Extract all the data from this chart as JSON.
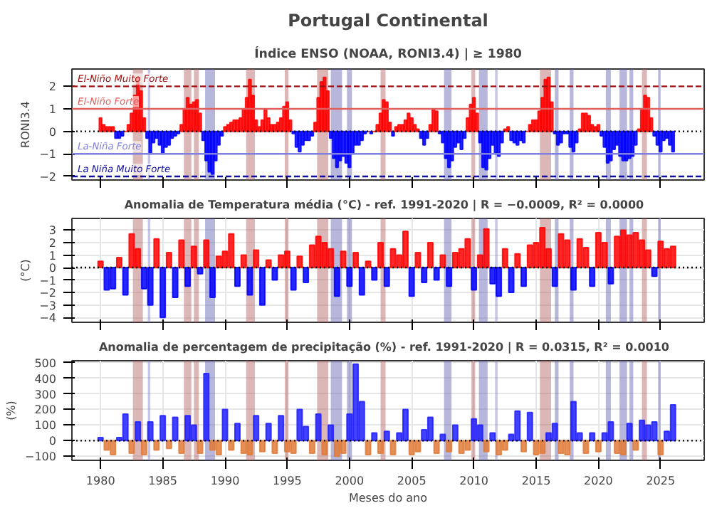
{
  "chart_data": [
    {
      "type": "bar",
      "title": "Portugal Continental",
      "subtitle": "Índice ENSO (NOAA, RONI3.4) | ≥ 1980",
      "ylabel": "RONI3.4",
      "tick_labels": "y",
      "grid": false,
      "xlim": [
        1977.7,
        2028.5
      ],
      "xticks": [
        1980,
        1985,
        1990,
        1995,
        2000,
        2005,
        2010,
        2015,
        2020,
        2025
      ],
      "ylim": [
        -2.16,
        2.77
      ],
      "yticks": [
        -2,
        -1,
        0,
        1,
        2
      ],
      "x": [
        1980,
        1980.25,
        1980.5,
        1980.75,
        1981,
        1981.25,
        1981.5,
        1981.75,
        1982,
        1982.25,
        1982.5,
        1982.75,
        1983,
        1983.25,
        1983.5,
        1983.75,
        1984,
        1984.25,
        1984.5,
        1984.75,
        1985,
        1985.25,
        1985.5,
        1985.75,
        1986,
        1986.25,
        1986.5,
        1986.75,
        1987,
        1987.25,
        1987.5,
        1987.75,
        1988,
        1988.25,
        1988.5,
        1988.75,
        1989,
        1989.25,
        1989.5,
        1989.75,
        1990,
        1990.25,
        1990.5,
        1990.75,
        1991,
        1991.25,
        1991.5,
        1991.75,
        1992,
        1992.25,
        1992.5,
        1992.75,
        1993,
        1993.25,
        1993.5,
        1993.75,
        1994,
        1994.25,
        1994.5,
        1994.75,
        1995,
        1995.25,
        1995.5,
        1995.75,
        1996,
        1996.25,
        1996.5,
        1996.75,
        1997,
        1997.25,
        1997.5,
        1997.75,
        1998,
        1998.25,
        1998.5,
        1998.75,
        1999,
        1999.25,
        1999.5,
        1999.75,
        2000,
        2000.25,
        2000.5,
        2000.75,
        2001,
        2001.25,
        2001.5,
        2001.75,
        2002,
        2002.25,
        2002.5,
        2002.75,
        2003,
        2003.25,
        2003.5,
        2003.75,
        2004,
        2004.25,
        2004.5,
        2004.75,
        2005,
        2005.25,
        2005.5,
        2005.75,
        2006,
        2006.25,
        2006.5,
        2006.75,
        2007,
        2007.25,
        2007.5,
        2007.75,
        2008,
        2008.25,
        2008.5,
        2008.75,
        2009,
        2009.25,
        2009.5,
        2009.75,
        2010,
        2010.25,
        2010.5,
        2010.75,
        2011,
        2011.25,
        2011.5,
        2011.75,
        2012,
        2012.25,
        2012.5,
        2012.75,
        2013,
        2013.25,
        2013.5,
        2013.75,
        2014,
        2014.25,
        2014.5,
        2014.75,
        2015,
        2015.25,
        2015.5,
        2015.75,
        2016,
        2016.25,
        2016.5,
        2016.75,
        2017,
        2017.25,
        2017.5,
        2017.75,
        2018,
        2018.25,
        2018.5,
        2018.75,
        2019,
        2019.25,
        2019.5,
        2019.75,
        2020,
        2020.25,
        2020.5,
        2020.75,
        2021,
        2021.25,
        2021.5,
        2021.75,
        2022,
        2022.25,
        2022.5,
        2022.75,
        2023,
        2023.25,
        2023.5,
        2023.75,
        2024,
        2024.25,
        2024.5,
        2024.75,
        2025,
        2025.25,
        2025.5,
        2025.75,
        2026
      ],
      "values": [
        0.6,
        0.3,
        0.2,
        0.2,
        0.2,
        -0.3,
        -0.3,
        -0.2,
        0.0,
        0.3,
        0.8,
        1.6,
        2.4,
        1.8,
        0.6,
        -0.3,
        -1.0,
        -0.5,
        -0.3,
        -0.6,
        -1.0,
        -0.7,
        -0.6,
        -0.3,
        -0.2,
        -0.1,
        0.3,
        1.0,
        1.5,
        1.2,
        1.3,
        1.4,
        0.8,
        -0.4,
        -1.3,
        -1.8,
        -1.9,
        -1.3,
        -0.6,
        -0.2,
        0.2,
        0.3,
        0.4,
        0.5,
        0.5,
        0.6,
        1.0,
        1.5,
        2.3,
        1.6,
        0.5,
        0.2,
        0.5,
        1.0,
        0.6,
        0.3,
        0.3,
        0.4,
        0.6,
        1.1,
        1.3,
        0.5,
        -0.1,
        -0.7,
        -0.9,
        -0.6,
        -0.4,
        -0.4,
        -0.2,
        0.4,
        1.5,
        2.2,
        2.4,
        1.8,
        -0.3,
        -1.2,
        -1.6,
        -1.3,
        -1.1,
        -1.4,
        -1.6,
        -1.0,
        -0.6,
        -0.6,
        -0.4,
        -0.1,
        0.0,
        -0.1,
        0.0,
        0.3,
        0.8,
        1.4,
        1.3,
        0.4,
        -0.2,
        0.2,
        0.3,
        0.3,
        0.5,
        0.8,
        0.6,
        0.3,
        0.1,
        -0.3,
        -0.6,
        -0.3,
        0.3,
        1.0,
        0.9,
        -0.1,
        -0.5,
        -1.2,
        -1.6,
        -1.3,
        -0.7,
        -0.5,
        -0.8,
        -0.3,
        0.6,
        1.2,
        1.5,
        0.8,
        -0.5,
        -1.6,
        -1.7,
        -1.2,
        -0.6,
        -1.0,
        -1.1,
        -0.5,
        0.1,
        0.2,
        -0.4,
        -0.5,
        -0.6,
        -0.4,
        -0.5,
        0.0,
        0.3,
        0.5,
        0.5,
        0.9,
        1.5,
        2.3,
        2.4,
        1.3,
        -0.1,
        -0.6,
        -0.5,
        -0.1,
        -0.1,
        -0.7,
        -0.9,
        -0.5,
        0.1,
        0.8,
        0.8,
        0.7,
        0.3,
        0.2,
        0.3,
        -0.2,
        -0.7,
        -1.4,
        -1.3,
        -0.8,
        -0.6,
        -1.1,
        -1.3,
        -1.3,
        -1.2,
        -1.1,
        -0.6,
        0.1,
        1.0,
        1.6,
        1.5,
        0.6,
        -0.2,
        -0.6,
        -0.9,
        -0.4,
        -0.3,
        -0.6,
        -0.9
      ],
      "colors": [
        "#ff0000",
        "#ff0000",
        "#ff0000",
        "#ff0000",
        "#ff0000",
        "#0000ff",
        "#0000ff",
        "#0000ff",
        "#ff0000",
        "#ff0000",
        "#ff0000",
        "#ff0000",
        "#ff0000",
        "#ff0000",
        "#ff0000",
        "#0000ff",
        "#0000ff",
        "#0000ff",
        "#0000ff",
        "#0000ff",
        "#0000ff",
        "#0000ff",
        "#0000ff",
        "#0000ff",
        "#0000ff",
        "#0000ff",
        "#ff0000",
        "#ff0000",
        "#ff0000",
        "#ff0000",
        "#ff0000",
        "#ff0000",
        "#ff0000",
        "#0000ff",
        "#0000ff",
        "#0000ff",
        "#0000ff",
        "#0000ff",
        "#0000ff",
        "#0000ff",
        "#ff0000",
        "#ff0000",
        "#ff0000",
        "#ff0000",
        "#ff0000",
        "#ff0000",
        "#ff0000",
        "#ff0000",
        "#ff0000",
        "#ff0000",
        "#ff0000",
        "#ff0000",
        "#ff0000",
        "#ff0000",
        "#ff0000",
        "#ff0000",
        "#ff0000",
        "#ff0000",
        "#ff0000",
        "#ff0000",
        "#ff0000",
        "#ff0000",
        "#0000ff",
        "#0000ff",
        "#0000ff",
        "#0000ff",
        "#0000ff",
        "#0000ff",
        "#0000ff",
        "#ff0000",
        "#ff0000",
        "#ff0000",
        "#ff0000",
        "#ff0000",
        "#0000ff",
        "#0000ff",
        "#0000ff",
        "#0000ff",
        "#0000ff",
        "#0000ff",
        "#0000ff",
        "#0000ff",
        "#0000ff",
        "#0000ff",
        "#0000ff",
        "#0000ff",
        "#ff0000",
        "#0000ff",
        "#ff0000",
        "#ff0000",
        "#ff0000",
        "#ff0000",
        "#ff0000",
        "#ff0000",
        "#0000ff",
        "#ff0000",
        "#ff0000",
        "#ff0000",
        "#ff0000",
        "#ff0000",
        "#ff0000",
        "#ff0000",
        "#ff0000",
        "#0000ff",
        "#0000ff",
        "#0000ff",
        "#ff0000",
        "#ff0000",
        "#ff0000",
        "#0000ff",
        "#0000ff",
        "#0000ff",
        "#0000ff",
        "#0000ff",
        "#0000ff",
        "#0000ff",
        "#0000ff",
        "#0000ff",
        "#ff0000",
        "#ff0000",
        "#ff0000",
        "#ff0000",
        "#0000ff",
        "#0000ff",
        "#0000ff",
        "#0000ff",
        "#0000ff",
        "#0000ff",
        "#0000ff",
        "#0000ff",
        "#ff0000",
        "#ff0000",
        "#0000ff",
        "#0000ff",
        "#0000ff",
        "#0000ff",
        "#0000ff",
        "#ff0000",
        "#ff0000",
        "#ff0000",
        "#ff0000",
        "#ff0000",
        "#ff0000",
        "#ff0000",
        "#ff0000",
        "#ff0000",
        "#0000ff",
        "#0000ff",
        "#0000ff",
        "#0000ff",
        "#0000ff",
        "#0000ff",
        "#0000ff",
        "#0000ff",
        "#ff0000",
        "#ff0000",
        "#ff0000",
        "#ff0000",
        "#ff0000",
        "#ff0000",
        "#ff0000",
        "#0000ff",
        "#0000ff",
        "#0000ff",
        "#0000ff",
        "#0000ff",
        "#0000ff",
        "#0000ff",
        "#0000ff",
        "#0000ff",
        "#0000ff",
        "#0000ff",
        "#0000ff",
        "#ff0000",
        "#ff0000",
        "#ff0000",
        "#ff0000",
        "#ff0000",
        "#0000ff",
        "#0000ff",
        "#0000ff",
        "#0000ff",
        "#0000ff",
        "#0000ff",
        "#0000ff"
      ],
      "ref_lines": [
        {
          "axis": "y",
          "value": 0,
          "color": "#000000",
          "line_style": "dotted"
        },
        {
          "axis": "y",
          "value": 2,
          "label": "El-Niño Muito Forte",
          "color": "#a01010",
          "line_style": "dashed"
        },
        {
          "axis": "y",
          "value": 1,
          "label": "El-Niño Forte",
          "color": "#e06060",
          "line_style": "solid"
        },
        {
          "axis": "y",
          "value": -1,
          "label": "La-Niña Forte",
          "color": "#8080e0",
          "line_style": "solid"
        },
        {
          "axis": "y",
          "value": -2,
          "label": "La Niña Muito Forte",
          "color": "#1010a0",
          "line_style": "dashed"
        }
      ],
      "bands": [
        {
          "axis": "x",
          "from": 1982.6,
          "to": 1983.4,
          "color": "#b06060"
        },
        {
          "axis": "x",
          "from": 1983.8,
          "to": 1984.0,
          "color": "#8080c8"
        },
        {
          "axis": "x",
          "from": 1986.7,
          "to": 1987.3,
          "color": "#b06060"
        },
        {
          "axis": "x",
          "from": 1987.5,
          "to": 1987.9,
          "color": "#b06060"
        },
        {
          "axis": "x",
          "from": 1988.4,
          "to": 1989.2,
          "color": "#6060b0"
        },
        {
          "axis": "x",
          "from": 1991.7,
          "to": 1992.4,
          "color": "#b06060"
        },
        {
          "axis": "x",
          "from": 1994.8,
          "to": 1995.1,
          "color": "#b06060"
        },
        {
          "axis": "x",
          "from": 1997.4,
          "to": 1998.3,
          "color": "#b06060"
        },
        {
          "axis": "x",
          "from": 1998.5,
          "to": 1999.4,
          "color": "#6060b0"
        },
        {
          "axis": "x",
          "from": 1999.8,
          "to": 2000.2,
          "color": "#6060b0"
        },
        {
          "axis": "x",
          "from": 2002.5,
          "to": 2002.9,
          "color": "#b06060"
        },
        {
          "axis": "x",
          "from": 2007.6,
          "to": 2008.2,
          "color": "#6060b0"
        },
        {
          "axis": "x",
          "from": 2009.8,
          "to": 2010.1,
          "color": "#b06060"
        },
        {
          "axis": "x",
          "from": 2010.4,
          "to": 2011.1,
          "color": "#6060b0"
        },
        {
          "axis": "x",
          "from": 2011.7,
          "to": 2011.9,
          "color": "#8080c8"
        },
        {
          "axis": "x",
          "from": 2015.3,
          "to": 2016.2,
          "color": "#b06060"
        },
        {
          "axis": "x",
          "from": 2016.5,
          "to": 2016.8,
          "color": "#6060b0"
        },
        {
          "axis": "x",
          "from": 2017.7,
          "to": 2018.0,
          "color": "#6060b0"
        },
        {
          "axis": "x",
          "from": 2020.6,
          "to": 2021.0,
          "color": "#6060b0"
        },
        {
          "axis": "x",
          "from": 2021.7,
          "to": 2022.3,
          "color": "#6060b0"
        },
        {
          "axis": "x",
          "from": 2022.5,
          "to": 2022.8,
          "color": "#6060b0"
        },
        {
          "axis": "x",
          "from": 2023.5,
          "to": 2023.9,
          "color": "#b06060"
        },
        {
          "axis": "x",
          "from": 2024.8,
          "to": 2025.0,
          "color": "#6060b0"
        }
      ]
    },
    {
      "type": "bar",
      "title": "Anomalia de Temperatura média (°C) - ref. 1991-2020  |  R = −0.0009, R² = 0.0000",
      "ylabel": "(°C)",
      "tick_labels": "y",
      "grid": true,
      "xlim": [
        1977.7,
        2028.5
      ],
      "xticks": [
        1980,
        1985,
        1990,
        1995,
        2000,
        2005,
        2010,
        2015,
        2020,
        2025
      ],
      "ylim": [
        -4.39,
        3.94
      ],
      "yticks": [
        -4,
        -3,
        -2,
        -1,
        0,
        1,
        2,
        3
      ],
      "x": [
        1980,
        1980.5,
        1981,
        1981.5,
        1982,
        1982.5,
        1983,
        1983.5,
        1984,
        1984.5,
        1985,
        1985.5,
        1986,
        1986.5,
        1987,
        1987.5,
        1988,
        1988.5,
        1989,
        1989.5,
        1990,
        1990.5,
        1991,
        1991.5,
        1992,
        1992.5,
        1993,
        1993.5,
        1994,
        1994.5,
        1995,
        1995.5,
        1996,
        1996.5,
        1997,
        1997.5,
        1998,
        1998.5,
        1999,
        1999.5,
        2000,
        2000.5,
        2001,
        2001.5,
        2002,
        2002.5,
        2003,
        2003.5,
        2004,
        2004.5,
        2005,
        2005.5,
        2006,
        2006.5,
        2007,
        2007.5,
        2008,
        2008.5,
        2009,
        2009.5,
        2010,
        2010.5,
        2011,
        2011.5,
        2012,
        2012.5,
        2013,
        2013.5,
        2014,
        2014.5,
        2015,
        2015.5,
        2016,
        2016.5,
        2017,
        2017.5,
        2018,
        2018.5,
        2019,
        2019.5,
        2020,
        2020.5,
        2021,
        2021.5,
        2022,
        2022.5,
        2023,
        2023.5,
        2024,
        2024.5,
        2025,
        2025.5,
        2026
      ],
      "values": [
        0.5,
        -1.8,
        -1.7,
        0.8,
        -2.2,
        2.7,
        1.5,
        -1.7,
        -3.0,
        2.3,
        -4.0,
        1.2,
        -2.4,
        2.2,
        -1.5,
        1.7,
        -0.5,
        2.2,
        -2.4,
        0.9,
        1.3,
        2.7,
        -1.5,
        1.0,
        -2.2,
        1.4,
        -3.0,
        0.6,
        -1.0,
        1.0,
        1.3,
        -1.8,
        0.9,
        -1.2,
        1.8,
        2.5,
        2.0,
        1.5,
        -2.3,
        1.3,
        -1.5,
        1.2,
        -2.2,
        0.5,
        -1.0,
        2.0,
        -1.5,
        1.5,
        1.0,
        2.9,
        -2.3,
        1.2,
        -1.2,
        2.0,
        -1.0,
        1.0,
        -1.5,
        1.2,
        1.5,
        2.3,
        -1.8,
        1.0,
        3.1,
        -1.3,
        -2.3,
        1.5,
        -2.0,
        1.1,
        -1.5,
        1.8,
        2.0,
        3.2,
        1.5,
        -1.5,
        2.7,
        2.2,
        -1.8,
        2.3,
        1.6,
        -1.5,
        2.8,
        2.0,
        -1.3,
        2.5,
        3.0,
        2.6,
        2.8,
        2.2,
        1.4,
        -0.7,
        2.1,
        1.5,
        1.7
      ],
      "colors": [
        "#ff0000",
        "#0000ff",
        "#0000ff",
        "#ff0000",
        "#0000ff",
        "#ff0000",
        "#ff0000",
        "#0000ff",
        "#0000ff",
        "#ff0000",
        "#0000ff",
        "#ff0000",
        "#0000ff",
        "#ff0000",
        "#0000ff",
        "#ff0000",
        "#0000ff",
        "#ff0000",
        "#0000ff",
        "#ff0000",
        "#ff0000",
        "#ff0000",
        "#0000ff",
        "#ff0000",
        "#0000ff",
        "#ff0000",
        "#0000ff",
        "#ff0000",
        "#0000ff",
        "#ff0000",
        "#ff0000",
        "#0000ff",
        "#ff0000",
        "#0000ff",
        "#ff0000",
        "#ff0000",
        "#ff0000",
        "#ff0000",
        "#0000ff",
        "#ff0000",
        "#0000ff",
        "#ff0000",
        "#0000ff",
        "#ff0000",
        "#0000ff",
        "#ff0000",
        "#0000ff",
        "#ff0000",
        "#ff0000",
        "#ff0000",
        "#0000ff",
        "#ff0000",
        "#0000ff",
        "#ff0000",
        "#0000ff",
        "#ff0000",
        "#0000ff",
        "#ff0000",
        "#ff0000",
        "#ff0000",
        "#0000ff",
        "#ff0000",
        "#ff0000",
        "#0000ff",
        "#0000ff",
        "#ff0000",
        "#0000ff",
        "#ff0000",
        "#0000ff",
        "#ff0000",
        "#ff0000",
        "#ff0000",
        "#ff0000",
        "#0000ff",
        "#ff0000",
        "#ff0000",
        "#0000ff",
        "#ff0000",
        "#ff0000",
        "#0000ff",
        "#ff0000",
        "#ff0000",
        "#0000ff",
        "#ff0000",
        "#ff0000",
        "#ff0000",
        "#ff0000",
        "#ff0000",
        "#ff0000",
        "#0000ff",
        "#ff0000",
        "#ff0000",
        "#ff0000"
      ],
      "ref_lines": [
        {
          "axis": "y",
          "value": 0,
          "color": "#000000",
          "line_style": "dotted"
        }
      ],
      "bands": [
        {
          "axis": "x",
          "from": 1982.6,
          "to": 1983.4,
          "color": "#b06060"
        },
        {
          "axis": "x",
          "from": 1983.8,
          "to": 1984.0,
          "color": "#8080c8"
        },
        {
          "axis": "x",
          "from": 1986.7,
          "to": 1987.3,
          "color": "#b06060"
        },
        {
          "axis": "x",
          "from": 1987.5,
          "to": 1987.9,
          "color": "#b06060"
        },
        {
          "axis": "x",
          "from": 1988.4,
          "to": 1989.2,
          "color": "#6060b0"
        },
        {
          "axis": "x",
          "from": 1991.7,
          "to": 1992.4,
          "color": "#b06060"
        },
        {
          "axis": "x",
          "from": 1994.8,
          "to": 1995.1,
          "color": "#b06060"
        },
        {
          "axis": "x",
          "from": 1997.4,
          "to": 1998.3,
          "color": "#b06060"
        },
        {
          "axis": "x",
          "from": 1998.5,
          "to": 1999.4,
          "color": "#6060b0"
        },
        {
          "axis": "x",
          "from": 1999.8,
          "to": 2000.2,
          "color": "#6060b0"
        },
        {
          "axis": "x",
          "from": 2002.5,
          "to": 2002.9,
          "color": "#b06060"
        },
        {
          "axis": "x",
          "from": 2007.6,
          "to": 2008.2,
          "color": "#6060b0"
        },
        {
          "axis": "x",
          "from": 2009.8,
          "to": 2010.1,
          "color": "#b06060"
        },
        {
          "axis": "x",
          "from": 2010.4,
          "to": 2011.1,
          "color": "#6060b0"
        },
        {
          "axis": "x",
          "from": 2011.7,
          "to": 2011.9,
          "color": "#8080c8"
        },
        {
          "axis": "x",
          "from": 2015.3,
          "to": 2016.2,
          "color": "#b06060"
        },
        {
          "axis": "x",
          "from": 2016.5,
          "to": 2016.8,
          "color": "#6060b0"
        },
        {
          "axis": "x",
          "from": 2017.7,
          "to": 2018.0,
          "color": "#6060b0"
        },
        {
          "axis": "x",
          "from": 2020.6,
          "to": 2021.0,
          "color": "#6060b0"
        },
        {
          "axis": "x",
          "from": 2021.7,
          "to": 2022.3,
          "color": "#6060b0"
        },
        {
          "axis": "x",
          "from": 2022.5,
          "to": 2022.8,
          "color": "#6060b0"
        },
        {
          "axis": "x",
          "from": 2023.5,
          "to": 2023.9,
          "color": "#b06060"
        },
        {
          "axis": "x",
          "from": 2024.8,
          "to": 2025.0,
          "color": "#6060b0"
        }
      ]
    },
    {
      "type": "bar",
      "title": "Anomalia de percentagem de precipitação (%) - ref. 1991-2020  |  R = 0.0315, R² = 0.0010",
      "ylabel": "(%)",
      "xlabel": "Meses do ano",
      "grid": true,
      "xlim": [
        1977.7,
        2028.5
      ],
      "xticks": [
        1980,
        1985,
        1990,
        1995,
        2000,
        2005,
        2010,
        2015,
        2020,
        2025
      ],
      "ylim": [
        -126,
        512
      ],
      "yticks": [
        -100,
        0,
        100,
        200,
        300,
        400,
        500
      ],
      "x": [
        1980,
        1980.5,
        1981,
        1981.5,
        1982,
        1982.5,
        1983,
        1983.5,
        1984,
        1984.5,
        1985,
        1985.5,
        1986,
        1986.5,
        1987,
        1987.5,
        1988,
        1988.5,
        1989,
        1989.5,
        1990,
        1990.5,
        1991,
        1991.5,
        1992,
        1992.5,
        1993,
        1993.5,
        1994,
        1994.5,
        1995,
        1995.5,
        1996,
        1996.5,
        1997,
        1997.5,
        1998,
        1998.5,
        1999,
        1999.5,
        2000,
        2000.5,
        2001,
        2001.5,
        2002,
        2002.5,
        2003,
        2003.5,
        2004,
        2004.5,
        2005,
        2005.5,
        2006,
        2006.5,
        2007,
        2007.5,
        2008,
        2008.5,
        2009,
        2009.5,
        2010,
        2010.5,
        2011,
        2011.5,
        2012,
        2012.5,
        2013,
        2013.5,
        2014,
        2014.5,
        2015,
        2015.5,
        2016,
        2016.5,
        2017,
        2017.5,
        2018,
        2018.5,
        2019,
        2019.5,
        2020,
        2020.5,
        2021,
        2021.5,
        2022,
        2022.5,
        2023,
        2023.5,
        2024,
        2024.5,
        2025,
        2025.5,
        2026
      ],
      "values": [
        20,
        -60,
        -90,
        20,
        170,
        -80,
        120,
        -90,
        120,
        -60,
        160,
        -50,
        150,
        -80,
        160,
        100,
        -80,
        430,
        -60,
        -90,
        200,
        -60,
        110,
        -80,
        -90,
        160,
        -70,
        110,
        -80,
        160,
        -70,
        -80,
        200,
        90,
        -80,
        170,
        -90,
        100,
        -100,
        -80,
        170,
        490,
        250,
        -90,
        50,
        -80,
        60,
        -90,
        50,
        200,
        -90,
        -70,
        70,
        150,
        -80,
        40,
        -70,
        100,
        -80,
        -60,
        140,
        100,
        -70,
        50,
        -90,
        -60,
        40,
        190,
        -70,
        180,
        -90,
        -80,
        50,
        110,
        -80,
        -90,
        250,
        50,
        -80,
        50,
        -70,
        50,
        120,
        -80,
        -90,
        110,
        -60,
        130,
        100,
        120,
        -90,
        60,
        230
      ],
      "colors": [
        "#2020ff",
        "#e07b39",
        "#e07b39",
        "#2020ff",
        "#2020ff",
        "#e07b39",
        "#2020ff",
        "#e07b39",
        "#2020ff",
        "#e07b39",
        "#2020ff",
        "#e07b39",
        "#2020ff",
        "#e07b39",
        "#2020ff",
        "#2020ff",
        "#e07b39",
        "#2020ff",
        "#e07b39",
        "#e07b39",
        "#2020ff",
        "#e07b39",
        "#2020ff",
        "#e07b39",
        "#e07b39",
        "#2020ff",
        "#e07b39",
        "#2020ff",
        "#e07b39",
        "#2020ff",
        "#e07b39",
        "#e07b39",
        "#2020ff",
        "#2020ff",
        "#e07b39",
        "#2020ff",
        "#e07b39",
        "#2020ff",
        "#e07b39",
        "#e07b39",
        "#2020ff",
        "#2020ff",
        "#2020ff",
        "#e07b39",
        "#2020ff",
        "#e07b39",
        "#2020ff",
        "#e07b39",
        "#2020ff",
        "#2020ff",
        "#e07b39",
        "#e07b39",
        "#2020ff",
        "#2020ff",
        "#e07b39",
        "#2020ff",
        "#e07b39",
        "#2020ff",
        "#e07b39",
        "#e07b39",
        "#2020ff",
        "#2020ff",
        "#e07b39",
        "#2020ff",
        "#e07b39",
        "#e07b39",
        "#2020ff",
        "#2020ff",
        "#e07b39",
        "#2020ff",
        "#e07b39",
        "#e07b39",
        "#2020ff",
        "#2020ff",
        "#e07b39",
        "#e07b39",
        "#2020ff",
        "#2020ff",
        "#e07b39",
        "#2020ff",
        "#e07b39",
        "#2020ff",
        "#2020ff",
        "#e07b39",
        "#e07b39",
        "#2020ff",
        "#e07b39",
        "#2020ff",
        "#2020ff",
        "#2020ff",
        "#e07b39",
        "#2020ff",
        "#2020ff"
      ],
      "ref_lines": [
        {
          "axis": "y",
          "value": 0,
          "color": "#000000",
          "line_style": "dotted"
        }
      ],
      "bands": [
        {
          "axis": "x",
          "from": 1982.6,
          "to": 1983.4,
          "color": "#b06060"
        },
        {
          "axis": "x",
          "from": 1983.8,
          "to": 1984.0,
          "color": "#8080c8"
        },
        {
          "axis": "x",
          "from": 1986.7,
          "to": 1987.3,
          "color": "#b06060"
        },
        {
          "axis": "x",
          "from": 1987.5,
          "to": 1987.9,
          "color": "#b06060"
        },
        {
          "axis": "x",
          "from": 1988.4,
          "to": 1989.2,
          "color": "#6060b0"
        },
        {
          "axis": "x",
          "from": 1991.7,
          "to": 1992.4,
          "color": "#b06060"
        },
        {
          "axis": "x",
          "from": 1994.8,
          "to": 1995.1,
          "color": "#b06060"
        },
        {
          "axis": "x",
          "from": 1997.4,
          "to": 1998.3,
          "color": "#b06060"
        },
        {
          "axis": "x",
          "from": 1998.5,
          "to": 1999.4,
          "color": "#6060b0"
        },
        {
          "axis": "x",
          "from": 1999.8,
          "to": 2000.2,
          "color": "#6060b0"
        },
        {
          "axis": "x",
          "from": 2002.5,
          "to": 2002.9,
          "color": "#b06060"
        },
        {
          "axis": "x",
          "from": 2007.6,
          "to": 2008.2,
          "color": "#6060b0"
        },
        {
          "axis": "x",
          "from": 2009.8,
          "to": 2010.1,
          "color": "#b06060"
        },
        {
          "axis": "x",
          "from": 2010.4,
          "to": 2011.1,
          "color": "#6060b0"
        },
        {
          "axis": "x",
          "from": 2011.7,
          "to": 2011.9,
          "color": "#8080c8"
        },
        {
          "axis": "x",
          "from": 2015.3,
          "to": 2016.2,
          "color": "#b06060"
        },
        {
          "axis": "x",
          "from": 2016.5,
          "to": 2016.8,
          "color": "#6060b0"
        },
        {
          "axis": "x",
          "from": 2017.7,
          "to": 2018.0,
          "color": "#6060b0"
        },
        {
          "axis": "x",
          "from": 2020.6,
          "to": 2021.0,
          "color": "#6060b0"
        },
        {
          "axis": "x",
          "from": 2021.7,
          "to": 2022.3,
          "color": "#6060b0"
        },
        {
          "axis": "x",
          "from": 2022.5,
          "to": 2022.8,
          "color": "#6060b0"
        },
        {
          "axis": "x",
          "from": 2023.5,
          "to": 2023.9,
          "color": "#b06060"
        },
        {
          "axis": "x",
          "from": 2024.8,
          "to": 2025.0,
          "color": "#6060b0"
        }
      ]
    }
  ]
}
